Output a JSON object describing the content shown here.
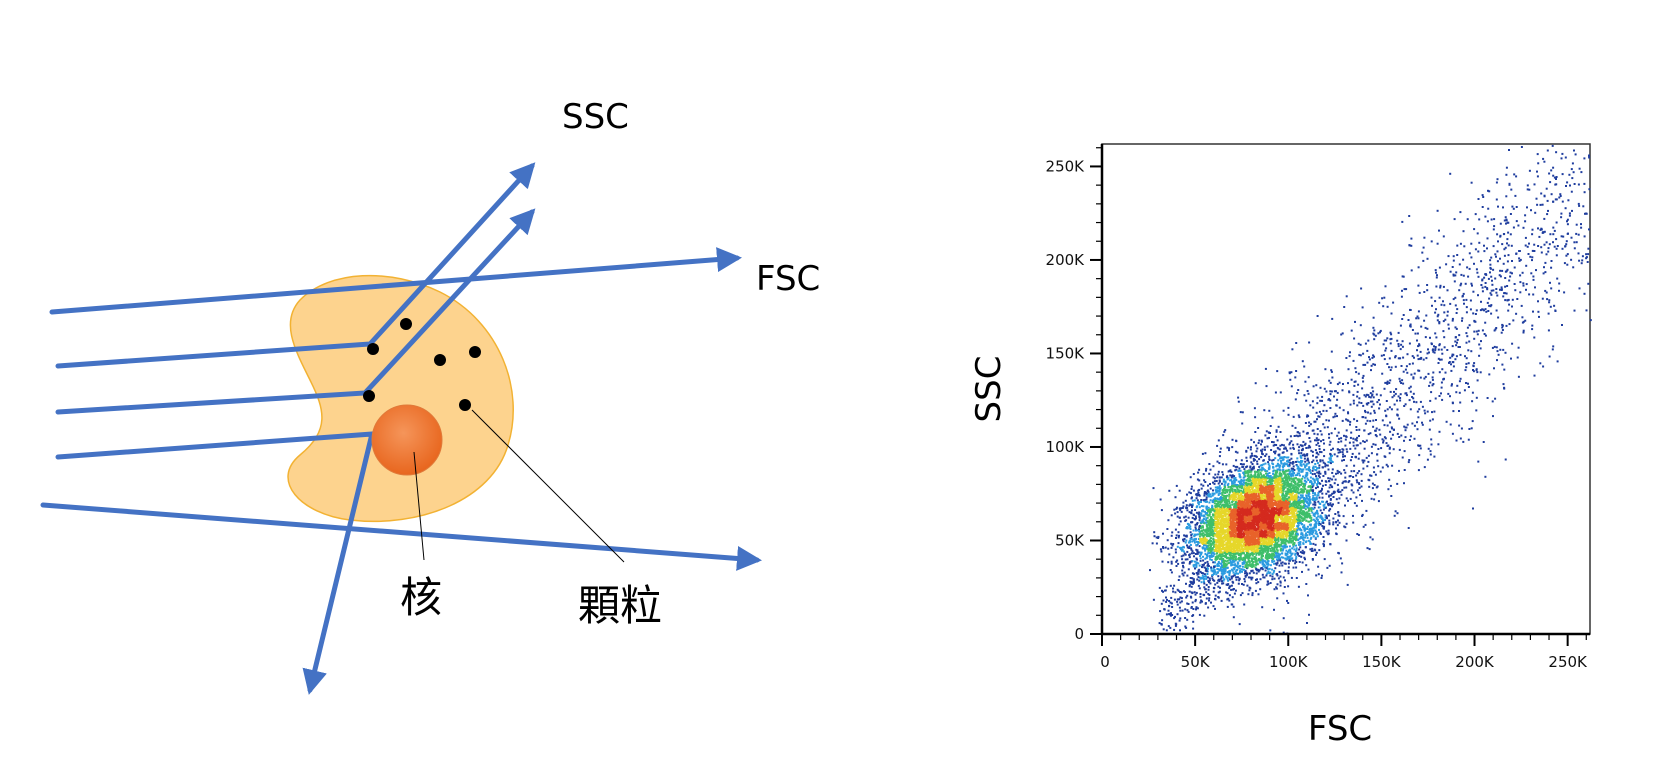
{
  "diagram": {
    "labels": {
      "ssc": "SSC",
      "fsc": "FSC",
      "nucleus": "核",
      "granule": "顆粒"
    },
    "colors": {
      "beam": "#4472c4",
      "cell_fill": "#fdd38e",
      "cell_stroke": "#f2b233",
      "nucleus": "#ee7c2d",
      "granule": "#000000"
    }
  },
  "chart_data": {
    "type": "scatter",
    "title": "",
    "xlabel": "FSC",
    "ylabel": "SSC",
    "xlim": [
      0,
      262000
    ],
    "ylim": [
      0,
      262000
    ],
    "x_ticks": [
      "0",
      "50K",
      "100K",
      "150K",
      "200K",
      "250K"
    ],
    "y_ticks": [
      "0",
      "50K",
      "100K",
      "150K",
      "200K",
      "250K"
    ],
    "x_tick_values": [
      0,
      50000,
      100000,
      150000,
      200000,
      250000
    ],
    "y_tick_values": [
      0,
      50000,
      100000,
      150000,
      200000,
      250000
    ],
    "density_style": "pseudocolor (blue low → green → yellow → red high)",
    "main_cluster": {
      "center_x": 82000,
      "center_y": 62000
    },
    "point_count_approx": 9000,
    "grid": false,
    "colors": [
      "#1f3d9e",
      "#2a9be0",
      "#3fbf6a",
      "#e6d72a",
      "#e8632a",
      "#d42a1e"
    ]
  }
}
